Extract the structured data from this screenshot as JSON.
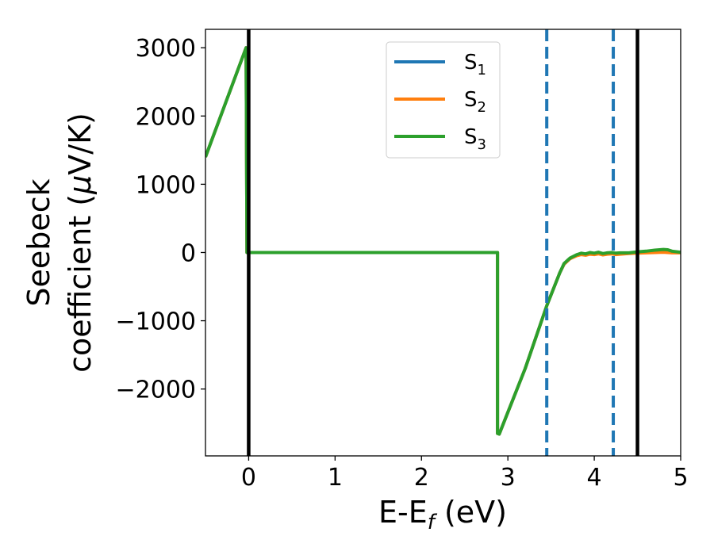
{
  "chart_data": {
    "type": "line",
    "xlabel": "E-E",
    "xlabel_sub": "f",
    "xlabel_unit": " (eV)",
    "ylabel_line1": "Seebeck",
    "ylabel_line2": "coefficient  (",
    "ylabel_mu": "μ",
    "ylabel_unit_end": "V/K)",
    "xlim": [
      -0.5,
      5.0
    ],
    "ylim": [
      -2980,
      3270
    ],
    "xticks": [
      0,
      1,
      2,
      3,
      4,
      5
    ],
    "xtick_labels": [
      "0",
      "1",
      "2",
      "3",
      "4",
      "5"
    ],
    "yticks": [
      3000,
      2000,
      1000,
      0,
      -1000,
      -2000
    ],
    "ytick_labels": [
      "3000",
      "2000",
      "1000",
      "0",
      "−1000",
      "−2000"
    ],
    "grid": false,
    "legend_position": "top-center",
    "series": [
      {
        "name": "S",
        "sub": "1",
        "color": "#1f77b4",
        "x": [
          -0.5,
          -0.03,
          -0.02,
          2.88,
          2.88,
          2.9,
          3.2,
          3.45,
          3.6,
          3.65,
          3.72,
          3.8,
          3.85,
          3.9,
          3.95,
          4.0,
          4.05,
          4.1,
          4.15,
          4.2,
          4.25,
          4.3,
          4.4,
          4.5,
          4.6,
          4.7,
          4.8,
          4.85,
          4.9,
          5.0
        ],
        "y": [
          1400,
          3000,
          0,
          0,
          -2650,
          -2660,
          -1700,
          -780,
          -300,
          -170,
          -90,
          -40,
          -20,
          -30,
          -15,
          -20,
          -10,
          -25,
          -15,
          -10,
          -20,
          -15,
          -10,
          -5,
          0,
          5,
          10,
          5,
          0,
          0
        ]
      },
      {
        "name": "S",
        "sub": "2",
        "color": "#ff7f0e",
        "x": [
          -0.5,
          -0.03,
          -0.02,
          2.88,
          2.88,
          2.9,
          3.2,
          3.45,
          3.6,
          3.65,
          3.72,
          3.8,
          3.85,
          3.9,
          3.95,
          4.0,
          4.05,
          4.1,
          4.15,
          4.2,
          4.25,
          4.3,
          4.4,
          4.5,
          4.6,
          4.7,
          4.8,
          4.85,
          4.9,
          5.0
        ],
        "y": [
          1400,
          3000,
          0,
          0,
          -2650,
          -2660,
          -1700,
          -780,
          -300,
          -170,
          -90,
          -45,
          -30,
          -40,
          -25,
          -30,
          -20,
          -35,
          -25,
          -20,
          -30,
          -25,
          -15,
          -10,
          -5,
          0,
          5,
          0,
          -5,
          -5
        ]
      },
      {
        "name": "S",
        "sub": "3",
        "color": "#2ca02c",
        "x": [
          -0.5,
          -0.03,
          -0.02,
          2.88,
          2.88,
          2.9,
          3.2,
          3.45,
          3.6,
          3.65,
          3.72,
          3.8,
          3.85,
          3.9,
          3.95,
          4.0,
          4.05,
          4.1,
          4.15,
          4.2,
          4.25,
          4.3,
          4.4,
          4.5,
          4.6,
          4.7,
          4.8,
          4.85,
          4.9,
          5.0
        ],
        "y": [
          1400,
          3000,
          0,
          0,
          -2650,
          -2660,
          -1700,
          -780,
          -300,
          -160,
          -80,
          -30,
          -10,
          -20,
          0,
          -10,
          5,
          -15,
          -5,
          0,
          -10,
          -5,
          -5,
          10,
          20,
          35,
          45,
          40,
          20,
          5
        ]
      }
    ],
    "vlines": [
      {
        "x": 0.0,
        "style": "solid",
        "color": "#000000"
      },
      {
        "x": 4.5,
        "style": "solid",
        "color": "#000000"
      },
      {
        "x": 3.45,
        "style": "dashed",
        "color": "#1f77b4"
      },
      {
        "x": 4.22,
        "style": "dashed",
        "color": "#1f77b4"
      }
    ]
  }
}
